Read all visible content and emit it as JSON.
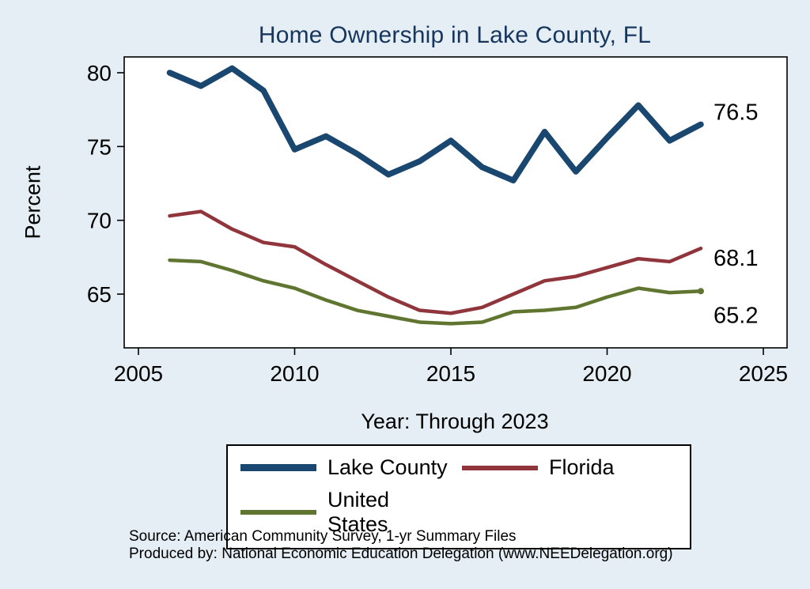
{
  "title": "Home Ownership in Lake County, FL",
  "x_axis_label": "Year: Through 2023",
  "y_axis_label": "Percent",
  "source_line1": "Source: American Community Survey, 1-yr Summary Files",
  "source_line2": "Produced by: National Economic Education Delegation (www.NEEDelegation.org)",
  "colors": {
    "background": "#e4eef4",
    "plot_background": "#ffffff",
    "title_text": "#17365d",
    "axis_text": "#000000"
  },
  "chart_data": {
    "type": "line",
    "title": "Home Ownership in Lake County, FL",
    "xlabel": "Year: Through 2023",
    "ylabel": "Percent",
    "x_ticks": [
      2005,
      2010,
      2015,
      2020,
      2025
    ],
    "y_ticks": [
      65,
      70,
      75,
      80
    ],
    "xlim": [
      2004.5,
      2025.7
    ],
    "ylim": [
      61.3,
      81.2
    ],
    "grid": false,
    "legend_position": "bottom",
    "x": [
      2006,
      2007,
      2008,
      2009,
      2010,
      2011,
      2012,
      2013,
      2014,
      2015,
      2016,
      2017,
      2018,
      2019,
      2020,
      2021,
      2022,
      2023
    ],
    "series": [
      {
        "name": "Lake County",
        "color": "#1a476f",
        "width": 7.5,
        "end_label": "76.5",
        "end_marker": false,
        "values": [
          80.0,
          79.1,
          80.3,
          78.8,
          74.8,
          75.7,
          74.5,
          73.1,
          74.0,
          75.4,
          73.6,
          72.7,
          76.0,
          73.3,
          75.6,
          77.8,
          75.4,
          76.5
        ]
      },
      {
        "name": "Florida",
        "color": "#90353b",
        "width": 4.5,
        "end_label": "68.1",
        "end_marker": false,
        "values": [
          70.3,
          70.6,
          69.4,
          68.5,
          68.2,
          67.0,
          65.9,
          64.8,
          63.9,
          63.7,
          64.1,
          65.0,
          65.9,
          66.2,
          66.8,
          67.4,
          67.2,
          68.1
        ]
      },
      {
        "name": "United States",
        "color": "#5f7530",
        "width": 4.5,
        "end_label": "65.2",
        "end_marker": true,
        "values": [
          67.3,
          67.2,
          66.6,
          65.9,
          65.4,
          64.6,
          63.9,
          63.5,
          63.1,
          63.0,
          63.1,
          63.8,
          63.9,
          64.1,
          64.8,
          65.4,
          65.1,
          65.2
        ]
      }
    ]
  }
}
